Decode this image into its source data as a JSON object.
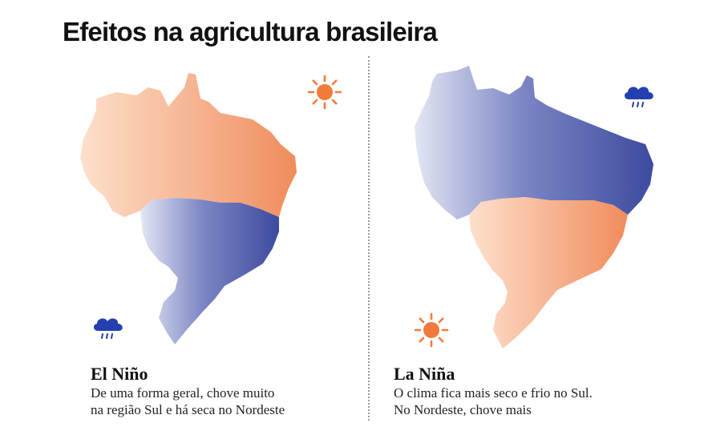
{
  "title": "Efeitos na agricultura brasileira",
  "colors": {
    "warm_light": "#fde0cc",
    "warm_dark": "#f08c5c",
    "cool_light": "#e3e6f4",
    "cool_dark": "#3d4b9e",
    "sun": "#f27b3c",
    "rain": "#2440b0"
  },
  "el_nino": {
    "heading": "El Niño",
    "line1": "De uma forma geral, chove muito",
    "line2": "na região Sul e há seca no Nordeste",
    "north_icon": "sun-icon",
    "south_icon": "rain-cloud-icon"
  },
  "la_nina": {
    "heading": "La Niña",
    "line1": "O clima fica mais seco e frio no Sul.",
    "line2": "No Nordeste, chove mais",
    "north_icon": "rain-cloud-icon",
    "south_icon": "sun-icon"
  }
}
